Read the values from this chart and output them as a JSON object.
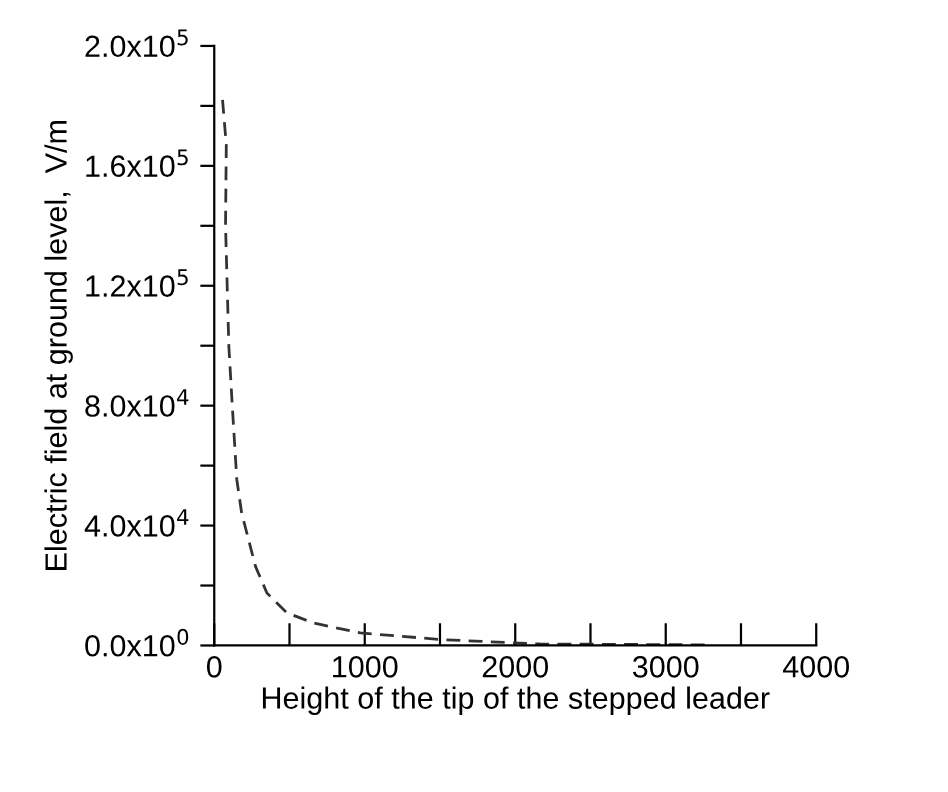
{
  "chart_data": {
    "type": "line",
    "xlabel": "Height of the tip of the stepped leader",
    "ylabel": "Electric field at ground level,  V/m",
    "x": [
      55,
      80,
      75,
      97,
      120,
      150,
      182,
      274,
      350,
      482,
      660,
      970,
      1500,
      2165,
      3300
    ],
    "series": [
      {
        "color": "#333333",
        "values": [
          182000,
          167000,
          140000,
          99800,
          79800,
          55300,
          44200,
          26400,
          17500,
          10900,
          7500,
          4200,
          2000,
          500,
          200
        ]
      }
    ],
    "line_style": "dashed",
    "marker": "none",
    "grid": false,
    "legend": false,
    "xlim": [
      0,
      4000
    ],
    "xticks": [
      0,
      {
        "value": 500,
        "label": null
      },
      1000,
      {
        "value": 1500,
        "label": null
      },
      2000,
      {
        "value": 2500,
        "label": null
      },
      3000,
      {
        "value": 3500,
        "label": null
      },
      4000
    ],
    "ylim": [
      0,
      200000
    ],
    "yticks": [
      {
        "value": 0,
        "label": "0.0x10$^{0}$"
      },
      {
        "value": 20000,
        "label": null
      },
      {
        "value": 40000,
        "label": "4.0x10$^{4}$"
      },
      {
        "value": 60000,
        "label": null
      },
      {
        "value": 80000,
        "label": "8.0x10$^{4}$"
      },
      {
        "value": 100000,
        "label": null
      },
      {
        "value": 120000,
        "label": "1.2x10$^{5}$"
      },
      {
        "value": 140000,
        "label": null
      },
      {
        "value": 160000,
        "label": "1.6x10$^{5}$"
      },
      {
        "value": 180000,
        "label": null
      },
      {
        "value": 200000,
        "label": "2.0x10$^{5}$"
      }
    ]
  }
}
